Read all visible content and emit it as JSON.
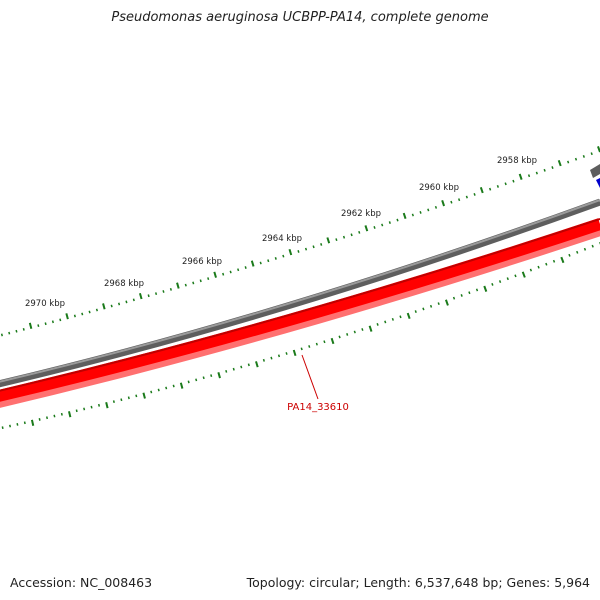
{
  "title": "Pseudomonas aeruginosa UCBPP-PA14, complete genome",
  "footer": {
    "accession": "Accession: NC_008463",
    "summary": "Topology: circular; Length: 6,537,648 bp; Genes: 5,964"
  },
  "colors": {
    "backbone": "#7f7f7f",
    "gene_fill": "#ff0000",
    "gene_light": "#ff6666",
    "gene_dark": "#c00000",
    "tick": "#1a7a1a",
    "label": "#cc0000",
    "blue_marker": "#0000cc"
  },
  "scale_labels": [
    "2958 kbp",
    "2960 kbp",
    "2962 kbp",
    "2964 kbp",
    "2966 kbp",
    "2968 kbp",
    "2970 kbp"
  ],
  "gene": {
    "name": "PA14_33610"
  }
}
